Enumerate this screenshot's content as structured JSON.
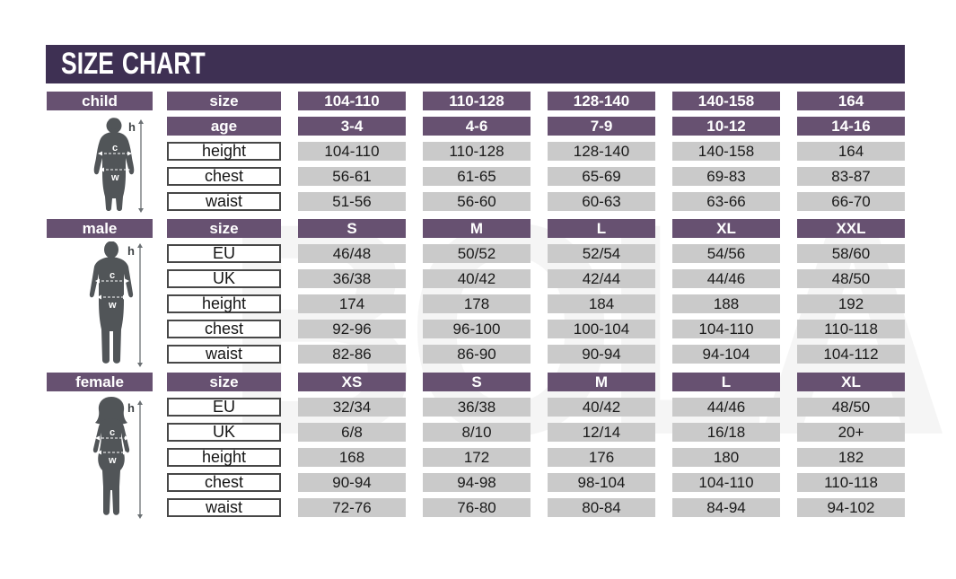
{
  "title": "SIZE CHART",
  "watermark": "BOLAND",
  "colors": {
    "title_bar": "#3e3053",
    "header_purple": "#675171",
    "cell_gray": "#cacaca",
    "figure_gray": "#515558",
    "text_dark": "#1a1a1a",
    "text_light": "#ffffff"
  },
  "figure_labels": {
    "height": "h",
    "chest": "c",
    "waist": "w"
  },
  "sections": [
    {
      "key": "child",
      "label": "child",
      "rows": [
        {
          "label": "size",
          "style": "header",
          "values": [
            "104-110",
            "110-128",
            "128-140",
            "140-158",
            "164"
          ]
        },
        {
          "label": "age",
          "style": "header",
          "values": [
            "3-4",
            "4-6",
            "7-9",
            "10-12",
            "14-16"
          ]
        },
        {
          "label": "height",
          "style": "data",
          "values": [
            "104-110",
            "110-128",
            "128-140",
            "140-158",
            "164"
          ]
        },
        {
          "label": "chest",
          "style": "data",
          "values": [
            "56-61",
            "61-65",
            "65-69",
            "69-83",
            "83-87"
          ]
        },
        {
          "label": "waist",
          "style": "data",
          "values": [
            "51-56",
            "56-60",
            "60-63",
            "63-66",
            "66-70"
          ]
        }
      ]
    },
    {
      "key": "male",
      "label": "male",
      "rows": [
        {
          "label": "size",
          "style": "header",
          "values": [
            "S",
            "M",
            "L",
            "XL",
            "XXL"
          ]
        },
        {
          "label": "EU",
          "style": "data",
          "values": [
            "46/48",
            "50/52",
            "52/54",
            "54/56",
            "58/60"
          ]
        },
        {
          "label": "UK",
          "style": "data",
          "values": [
            "36/38",
            "40/42",
            "42/44",
            "44/46",
            "48/50"
          ]
        },
        {
          "label": "height",
          "style": "data",
          "values": [
            "174",
            "178",
            "184",
            "188",
            "192"
          ]
        },
        {
          "label": "chest",
          "style": "data",
          "values": [
            "92-96",
            "96-100",
            "100-104",
            "104-110",
            "110-118"
          ]
        },
        {
          "label": "waist",
          "style": "data",
          "values": [
            "82-86",
            "86-90",
            "90-94",
            "94-104",
            "104-112"
          ]
        }
      ]
    },
    {
      "key": "female",
      "label": "female",
      "rows": [
        {
          "label": "size",
          "style": "header",
          "values": [
            "XS",
            "S",
            "M",
            "L",
            "XL"
          ]
        },
        {
          "label": "EU",
          "style": "data",
          "values": [
            "32/34",
            "36/38",
            "40/42",
            "44/46",
            "48/50"
          ]
        },
        {
          "label": "UK",
          "style": "data",
          "values": [
            "6/8",
            "8/10",
            "12/14",
            "16/18",
            "20+"
          ]
        },
        {
          "label": "height",
          "style": "data",
          "values": [
            "168",
            "172",
            "176",
            "180",
            "182"
          ]
        },
        {
          "label": "chest",
          "style": "data",
          "values": [
            "90-94",
            "94-98",
            "98-104",
            "104-110",
            "110-118"
          ]
        },
        {
          "label": "waist",
          "style": "data",
          "values": [
            "72-76",
            "76-80",
            "80-84",
            "84-94",
            "94-102"
          ]
        }
      ]
    }
  ],
  "chart_data": [
    {
      "type": "table",
      "title": "child",
      "columns": [
        "size",
        "104-110",
        "110-128",
        "128-140",
        "140-158",
        "164"
      ],
      "rows": [
        [
          "age",
          "3-4",
          "4-6",
          "7-9",
          "10-12",
          "14-16"
        ],
        [
          "height",
          "104-110",
          "110-128",
          "128-140",
          "140-158",
          "164"
        ],
        [
          "chest",
          "56-61",
          "61-65",
          "65-69",
          "69-83",
          "83-87"
        ],
        [
          "waist",
          "51-56",
          "56-60",
          "60-63",
          "63-66",
          "66-70"
        ]
      ]
    },
    {
      "type": "table",
      "title": "male",
      "columns": [
        "size",
        "S",
        "M",
        "L",
        "XL",
        "XXL"
      ],
      "rows": [
        [
          "EU",
          "46/48",
          "50/52",
          "52/54",
          "54/56",
          "58/60"
        ],
        [
          "UK",
          "36/38",
          "40/42",
          "42/44",
          "44/46",
          "48/50"
        ],
        [
          "height",
          "174",
          "178",
          "184",
          "188",
          "192"
        ],
        [
          "chest",
          "92-96",
          "96-100",
          "100-104",
          "104-110",
          "110-118"
        ],
        [
          "waist",
          "82-86",
          "86-90",
          "90-94",
          "94-104",
          "104-112"
        ]
      ]
    },
    {
      "type": "table",
      "title": "female",
      "columns": [
        "size",
        "XS",
        "S",
        "M",
        "L",
        "XL"
      ],
      "rows": [
        [
          "EU",
          "32/34",
          "36/38",
          "40/42",
          "44/46",
          "48/50"
        ],
        [
          "UK",
          "6/8",
          "8/10",
          "12/14",
          "16/18",
          "20+"
        ],
        [
          "height",
          "168",
          "172",
          "176",
          "180",
          "182"
        ],
        [
          "chest",
          "90-94",
          "94-98",
          "98-104",
          "104-110",
          "110-118"
        ],
        [
          "waist",
          "72-76",
          "76-80",
          "80-84",
          "84-94",
          "94-102"
        ]
      ]
    }
  ]
}
